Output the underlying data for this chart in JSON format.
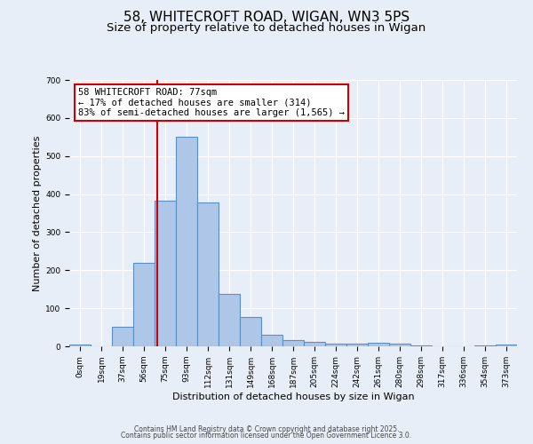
{
  "title_line1": "58, WHITECROFT ROAD, WIGAN, WN3 5PS",
  "title_line2": "Size of property relative to detached houses in Wigan",
  "xlabel": "Distribution of detached houses by size in Wigan",
  "ylabel": "Number of detached properties",
  "bar_labels": [
    "0sqm",
    "19sqm",
    "37sqm",
    "56sqm",
    "75sqm",
    "93sqm",
    "112sqm",
    "131sqm",
    "149sqm",
    "168sqm",
    "187sqm",
    "205sqm",
    "224sqm",
    "242sqm",
    "261sqm",
    "280sqm",
    "298sqm",
    "317sqm",
    "336sqm",
    "354sqm",
    "373sqm"
  ],
  "bar_values": [
    5,
    0,
    52,
    220,
    383,
    550,
    378,
    138,
    78,
    30,
    17,
    12,
    7,
    7,
    9,
    6,
    2,
    1,
    1,
    2,
    4
  ],
  "bar_color": "#aec6e8",
  "bar_edgecolor": "#5a8fc2",
  "bar_linewidth": 0.8,
  "vline_color": "#cc0000",
  "annotation_text": "58 WHITECROFT ROAD: 77sqm\n← 17% of detached houses are smaller (314)\n83% of semi-detached houses are larger (1,565) →",
  "annotation_box_edgecolor": "#cc0000",
  "annotation_box_facecolor": "#ffffff",
  "ylim": [
    0,
    700
  ],
  "yticks": [
    0,
    100,
    200,
    300,
    400,
    500,
    600,
    700
  ],
  "background_color": "#e8eef8",
  "grid_color": "#ffffff",
  "footer_line1": "Contains HM Land Registry data © Crown copyright and database right 2025.",
  "footer_line2": "Contains public sector information licensed under the Open Government Licence 3.0.",
  "title_fontsize": 11,
  "subtitle_fontsize": 9.5,
  "axis_label_fontsize": 8,
  "tick_fontsize": 6.5,
  "annotation_fontsize": 7.5,
  "footer_fontsize": 5.5,
  "property_sqm": 77,
  "bin_edges": [
    0,
    19,
    37,
    56,
    75,
    93,
    112,
    131,
    149,
    168,
    187,
    205,
    224,
    242,
    261,
    280,
    298,
    317,
    336,
    354,
    373,
    392
  ]
}
